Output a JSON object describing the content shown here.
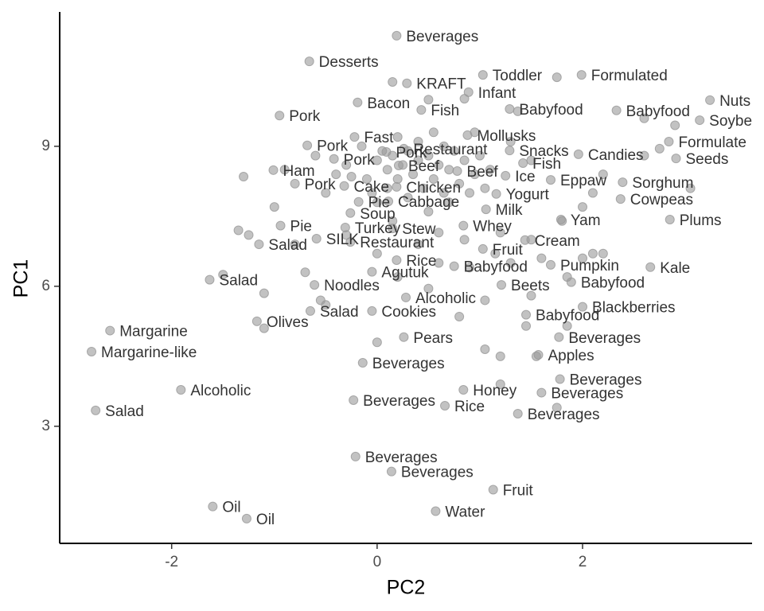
{
  "chart_data": {
    "type": "scatter",
    "xlabel": "PC2",
    "ylabel": "PC1",
    "xlim": [
      -3.09,
      3.65
    ],
    "ylim": [
      0.49,
      11.88
    ],
    "xticks": [
      -2,
      0,
      2
    ],
    "yticks": [
      3,
      6,
      9
    ],
    "color": "#999999",
    "series": [
      {
        "x": [
          0.19,
          -0.66,
          0.29,
          1.03,
          1.99,
          0.89,
          -0.19,
          0.43,
          3.24,
          -0.95,
          1.29,
          2.33,
          3.14,
          0.88,
          -0.22,
          -0.68,
          0.26,
          1.29,
          2.84,
          -0.42,
          1.96,
          2.91,
          0.09,
          1.42,
          -1.01,
          0.21,
          0.78,
          1.25,
          1.69,
          2.39,
          -0.8,
          -0.32,
          0.19,
          1.16,
          2.37,
          -0.18,
          0.11,
          1.06,
          -0.26,
          1.79,
          2.85,
          -0.94,
          -0.31,
          0.15,
          0.84,
          -0.59,
          -1.15,
          -0.26,
          1.03,
          1.44,
          0.19,
          1.69,
          2.66,
          0.75,
          -0.05,
          -1.63,
          -0.61,
          1.21,
          1.89,
          0.28,
          2.0,
          -0.65,
          -0.05,
          1.45,
          -1.17,
          -2.6,
          0.26,
          1.77,
          -2.78,
          1.57,
          -0.14,
          1.78,
          -1.91,
          0.84,
          1.6,
          -0.23,
          0.66,
          -2.74,
          1.37,
          -0.21,
          0.14,
          1.13,
          0.57,
          -1.6,
          -1.27
        ],
        "y": [
          11.37,
          10.82,
          10.35,
          10.53,
          10.53,
          10.16,
          9.94,
          9.78,
          9.99,
          9.66,
          9.8,
          9.77,
          9.56,
          9.24,
          9.2,
          9.02,
          8.95,
          8.91,
          9.1,
          8.73,
          8.83,
          8.74,
          8.88,
          8.64,
          8.49,
          8.59,
          8.47,
          8.37,
          8.28,
          8.23,
          8.2,
          8.15,
          8.13,
          7.98,
          7.87,
          7.81,
          7.82,
          7.65,
          7.57,
          7.43,
          7.43,
          7.3,
          7.26,
          7.24,
          7.3,
          7.02,
          6.9,
          6.95,
          6.8,
          6.99,
          6.56,
          6.46,
          6.41,
          6.43,
          6.31,
          6.14,
          6.03,
          6.03,
          6.09,
          5.76,
          5.56,
          5.47,
          5.47,
          5.39,
          5.25,
          5.05,
          4.91,
          4.91,
          4.6,
          4.53,
          4.36,
          4.01,
          3.78,
          3.78,
          3.72,
          3.56,
          3.44,
          3.34,
          3.27,
          2.35,
          2.03,
          1.64,
          1.18,
          1.28,
          1.02
        ],
        "labels": [
          "Beverages",
          "Desserts",
          "KRAFT",
          "Toddler",
          "Formulated",
          "Infant",
          "Bacon",
          "Fish",
          "Nuts",
          "Pork",
          "Babyfood",
          "Babyfood",
          "Soybe",
          "Mollusks",
          "Fast",
          "Pork",
          "Restaurant",
          "Snacks",
          "Formulate",
          "Pork",
          "Candies",
          "Seeds",
          "Pork",
          "Fish",
          "Ham",
          "Beef",
          "Beef",
          "Ice",
          "Eppaw",
          "Sorghum",
          "Pork",
          "Cake",
          "Chicken",
          "Yogurt",
          "Cowpeas",
          "Pie",
          "Cabbage",
          "Milk",
          "Soup",
          "Yam",
          "Plums",
          "Pie",
          "Turkey",
          "Stew",
          "Whey",
          "SILK",
          "Salad",
          "Restaurant",
          "Fruit",
          "Cream",
          "Rice",
          "Pumpkin",
          "Kale",
          "Babyfood",
          "Agutuk",
          "Salad",
          "Noodles",
          "Beets",
          "Babyfood",
          "Alcoholic",
          "Blackberries",
          "Salad",
          "Cookies",
          "Babyfood",
          "Olives",
          "Margarine",
          "Pears",
          "Beverages",
          "Margarine-like",
          "Apples",
          "Beverages",
          "Beverages",
          "Alcoholic",
          "Honey",
          "Beverages",
          "Beverages",
          "Rice",
          "Salad",
          "Beverages",
          "Beverages",
          "Beverages",
          "Fruit",
          "Water",
          "Oil",
          "Oil"
        ]
      },
      {
        "x": [
          -0.15,
          0.0,
          0.05,
          0.1,
          0.15,
          0.2,
          0.25,
          0.3,
          0.35,
          0.4,
          0.45,
          0.5,
          0.55,
          0.6,
          0.65,
          0.7,
          0.75,
          0.8,
          0.85,
          0.9,
          0.95,
          1.0,
          1.05,
          1.1,
          -0.1,
          -0.05,
          0.0,
          0.1,
          0.3,
          0.5,
          0.7,
          0.4,
          0.55,
          0.2,
          0.65,
          -0.3,
          -0.4,
          -0.5,
          -0.6,
          -0.9,
          -1.3,
          -1.0,
          -1.35,
          -1.25,
          -0.8,
          -0.7,
          -0.3,
          0.0,
          0.2,
          0.4,
          0.6,
          0.9,
          1.15,
          1.3,
          1.5,
          1.6,
          2.0,
          2.1,
          2.2,
          1.8,
          2.0,
          2.1,
          2.2,
          2.6,
          2.75,
          3.05,
          2.9,
          1.5,
          1.3,
          0.95,
          -1.5,
          -1.1,
          -0.5,
          -0.55,
          -1.1,
          0.0,
          1.05,
          1.2,
          1.45,
          1.55,
          1.85,
          1.05,
          0.8,
          0.5,
          1.5,
          1.85,
          1.2,
          1.75,
          0.5,
          0.15,
          0.85,
          1.37,
          2.6,
          1.75,
          -0.25,
          0.15,
          0.6,
          0.85,
          1.2
        ],
        "y": [
          9.0,
          8.7,
          8.9,
          8.5,
          8.8,
          8.3,
          8.6,
          8.9,
          8.4,
          8.7,
          8.1,
          8.8,
          8.3,
          8.6,
          8.0,
          8.5,
          8.9,
          8.2,
          8.7,
          8.0,
          8.4,
          8.8,
          8.1,
          8.5,
          8.3,
          8.0,
          7.8,
          8.1,
          7.9,
          7.6,
          7.8,
          9.1,
          9.3,
          9.2,
          9.0,
          8.6,
          8.4,
          8.0,
          8.8,
          8.5,
          8.35,
          7.7,
          7.2,
          7.1,
          6.9,
          6.3,
          7.1,
          6.7,
          6.2,
          6.9,
          6.5,
          6.4,
          6.7,
          6.5,
          7.0,
          6.6,
          6.6,
          6.7,
          6.7,
          7.4,
          7.7,
          8.0,
          8.4,
          8.8,
          8.95,
          8.1,
          9.45,
          8.7,
          9.1,
          9.3,
          6.25,
          5.85,
          5.6,
          5.7,
          5.1,
          4.8,
          4.65,
          4.5,
          5.15,
          4.5,
          5.15,
          5.7,
          5.35,
          5.95,
          5.8,
          6.2,
          3.9,
          3.4,
          10.0,
          10.38,
          10.02,
          9.75,
          9.6,
          10.48,
          8.35,
          7.4,
          7.15,
          7.0,
          7.15
        ]
      }
    ]
  }
}
